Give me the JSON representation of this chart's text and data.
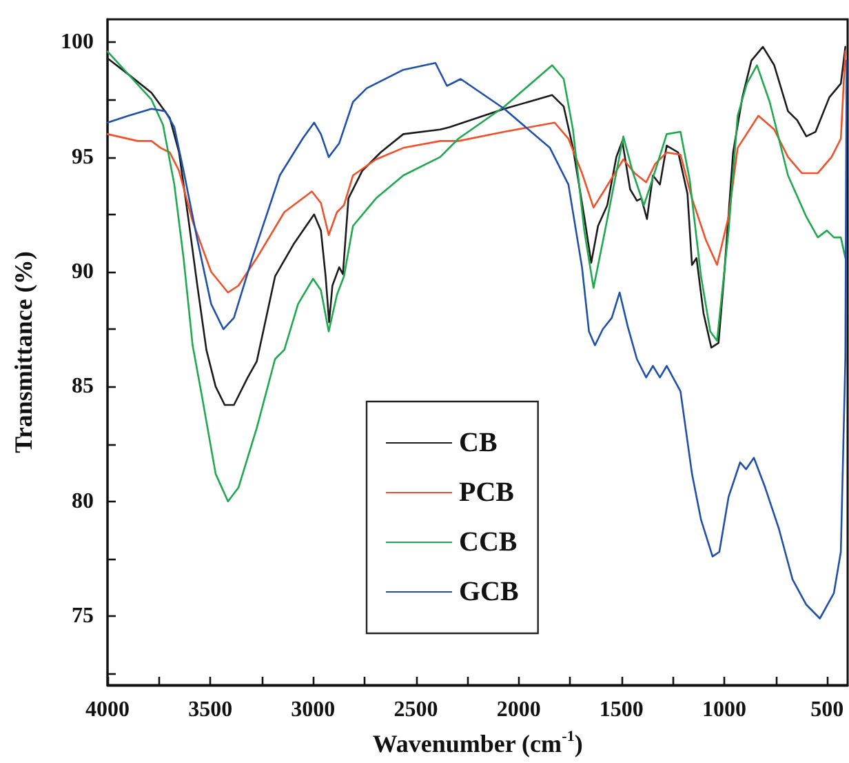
{
  "chart_data": {
    "type": "line",
    "xlabel": "Wavenumber (cm$^{-1}$)",
    "ylabel": "Transmittance (%)",
    "xlim": [
      4000,
      400
    ],
    "ylim": [
      72,
      101
    ],
    "xticks": [
      4000,
      {
        "value": 3750,
        "label": null
      },
      3500,
      {
        "value": 3250,
        "label": null
      },
      3000,
      {
        "value": 2750,
        "label": null
      },
      2500,
      {
        "value": 2250,
        "label": null
      },
      2000,
      {
        "value": 1750,
        "label": null
      },
      1500,
      {
        "value": 1250,
        "label": null
      },
      1000,
      {
        "value": 750,
        "label": null
      },
      500
    ],
    "yticks": [
      {
        "value": 72.5,
        "label": null
      },
      75,
      {
        "value": 77.5,
        "label": null
      },
      80,
      {
        "value": 82.5,
        "label": null
      },
      85,
      {
        "value": 87.5,
        "label": null
      },
      90,
      {
        "value": 92.5,
        "label": null
      },
      95,
      {
        "value": 97.5,
        "label": null
      },
      100
    ],
    "grid": false,
    "legend": "bottom",
    "marker": "none",
    "line_style": "solid",
    "series": [
      {
        "name": "CB",
        "color": "#1a1a1a",
        "x": [
          4000,
          3898,
          3786,
          3697,
          3652,
          3608,
          3563,
          3519,
          3474,
          3430,
          3385,
          3318,
          3274,
          3185,
          3095,
          2995,
          2962,
          2939,
          2922,
          2906,
          2873,
          2855,
          2828,
          2761,
          2672,
          2561,
          2382,
          2338,
          2070,
          1837,
          1781,
          1736,
          1681,
          1647,
          1614,
          1569,
          1525,
          1496,
          1458,
          1425,
          1403,
          1376,
          1347,
          1313,
          1280,
          1224,
          1179,
          1157,
          1135,
          1101,
          1063,
          1028,
          1001,
          957,
          912,
          868,
          812,
          757,
          690,
          645,
          601,
          556,
          489,
          433,
          411
        ],
        "values": [
          99.3,
          98.6,
          97.8,
          96.7,
          95.2,
          92.4,
          89.4,
          86.6,
          85.0,
          84.2,
          84.2,
          85.4,
          86.1,
          89.8,
          91.2,
          92.5,
          91.8,
          89.8,
          87.8,
          89.4,
          90.2,
          89.9,
          93.2,
          94.4,
          95.2,
          96.0,
          96.2,
          96.3,
          97.1,
          97.7,
          97.2,
          95.4,
          92.4,
          90.4,
          92.0,
          92.9,
          95.0,
          95.7,
          93.6,
          93.1,
          93.2,
          92.3,
          94.2,
          93.8,
          95.5,
          95.2,
          93.4,
          90.3,
          90.6,
          88.2,
          86.7,
          86.9,
          89.8,
          95.2,
          97.6,
          99.2,
          99.8,
          99.0,
          97.0,
          96.6,
          95.9,
          96.1,
          97.6,
          98.2,
          99.8
        ]
      },
      {
        "name": "PCB",
        "color": "#f0502a",
        "x": [
          4000,
          3853,
          3786,
          3742,
          3697,
          3652,
          3586,
          3496,
          3414,
          3363,
          3274,
          3140,
          3006,
          2962,
          2924,
          2884,
          2850,
          2806,
          2694,
          2561,
          2382,
          2293,
          2070,
          1825,
          1758,
          1692,
          1636,
          1580,
          1491,
          1436,
          1380,
          1336,
          1280,
          1213,
          1157,
          1090,
          1035,
          979,
          935,
          834,
          757,
          690,
          623,
          545,
          478,
          433,
          411
        ],
        "values": [
          96.0,
          95.7,
          95.7,
          95.4,
          95.2,
          94.4,
          92.2,
          90.0,
          89.1,
          89.4,
          90.6,
          92.6,
          93.5,
          93.0,
          91.6,
          92.6,
          92.9,
          94.2,
          94.9,
          95.4,
          95.7,
          95.7,
          96.1,
          96.5,
          95.8,
          94.3,
          92.8,
          93.6,
          94.9,
          94.3,
          93.9,
          94.7,
          95.2,
          95.1,
          93.2,
          91.4,
          90.3,
          92.4,
          95.4,
          96.8,
          96.2,
          95.0,
          94.3,
          94.3,
          95.0,
          95.8,
          99.6
        ]
      },
      {
        "name": "CCB",
        "color": "#1fa84f",
        "x": [
          4000,
          3898,
          3786,
          3730,
          3675,
          3630,
          3586,
          3541,
          3474,
          3414,
          3363,
          3274,
          3185,
          3140,
          3073,
          3000,
          2962,
          2924,
          2884,
          2850,
          2806,
          2694,
          2561,
          2382,
          2293,
          2070,
          1837,
          1781,
          1736,
          1681,
          1636,
          1580,
          1491,
          1447,
          1391,
          1336,
          1280,
          1213,
          1168,
          1113,
          1068,
          1035,
          979,
          935,
          890,
          841,
          779,
          690,
          601,
          545,
          501,
          467,
          433,
          411
        ],
        "values": [
          99.6,
          98.6,
          97.5,
          96.4,
          93.8,
          90.6,
          86.8,
          84.6,
          81.2,
          80.0,
          80.6,
          83.2,
          86.2,
          86.6,
          88.6,
          89.7,
          89.2,
          87.4,
          89.0,
          89.8,
          92.0,
          93.2,
          94.2,
          95.0,
          95.8,
          97.2,
          99.0,
          98.4,
          96.2,
          91.8,
          89.3,
          91.8,
          95.9,
          94.4,
          92.9,
          94.4,
          96.0,
          96.1,
          94.0,
          89.8,
          87.4,
          87.0,
          91.8,
          96.8,
          98.2,
          99.0,
          97.4,
          94.2,
          92.4,
          91.5,
          91.8,
          91.5,
          91.5,
          90.6
        ]
      },
      {
        "name": "GCB",
        "color": "#1f4fa8",
        "x": [
          4000,
          3898,
          3786,
          3719,
          3675,
          3630,
          3563,
          3496,
          3436,
          3385,
          3296,
          3162,
          3051,
          2995,
          2962,
          2924,
          2873,
          2806,
          2739,
          2561,
          2405,
          2349,
          2282,
          2070,
          1848,
          1758,
          1692,
          1658,
          1629,
          1591,
          1547,
          1509,
          1469,
          1425,
          1380,
          1347,
          1313,
          1280,
          1213,
          1157,
          1113,
          1057,
          1024,
          979,
          923,
          894,
          856,
          801,
          734,
          668,
          601,
          535,
          467,
          433,
          411,
          405
        ],
        "values": [
          96.5,
          96.8,
          97.1,
          97.0,
          96.3,
          94.4,
          91.4,
          88.6,
          87.5,
          88.0,
          90.6,
          94.2,
          95.8,
          96.5,
          96.0,
          95.0,
          95.6,
          97.4,
          98.0,
          98.8,
          99.1,
          98.1,
          98.4,
          97.1,
          95.4,
          93.8,
          90.2,
          87.4,
          86.8,
          87.5,
          88.0,
          89.1,
          87.6,
          86.2,
          85.4,
          85.9,
          85.4,
          85.9,
          84.8,
          81.2,
          79.2,
          77.6,
          77.8,
          80.2,
          81.7,
          81.4,
          81.9,
          80.6,
          78.8,
          76.6,
          75.5,
          74.9,
          76.0,
          77.8,
          86.2,
          99.2
        ]
      }
    ]
  }
}
